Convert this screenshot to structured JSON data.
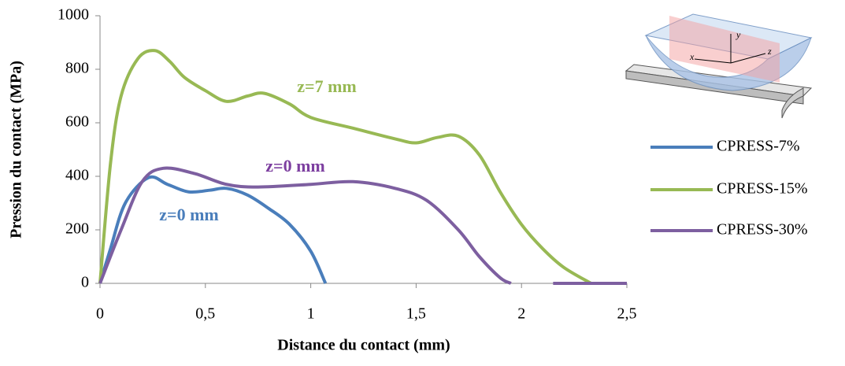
{
  "chart_data": {
    "type": "line",
    "x_label": "Distance du contact (mm)",
    "y_label": "Pression du contact (MPa)",
    "xlim": [
      0,
      2.5
    ],
    "ylim": [
      0,
      1000
    ],
    "xticks": [
      0,
      {
        "value": 0.5,
        "label": "0,5"
      },
      1,
      {
        "value": 1.5,
        "label": "1,5"
      },
      2,
      {
        "value": 2.5,
        "label": "2,5"
      }
    ],
    "yticks": [
      0,
      200,
      400,
      600,
      800,
      1000
    ],
    "grid": false,
    "legend": "right",
    "series": [
      {
        "name": "CPRESS-7%",
        "color": "#4a7ebb",
        "x": [
          0,
          0.05,
          0.12,
          0.23,
          0.32,
          0.42,
          0.52,
          0.6,
          0.7,
          0.8,
          0.9,
          1.0,
          1.07
        ],
        "values": [
          0,
          130,
          300,
          395,
          370,
          342,
          348,
          355,
          330,
          280,
          220,
          120,
          0
        ]
      },
      {
        "name": "CPRESS-15%",
        "color": "#98b954",
        "x": [
          0,
          0.05,
          0.1,
          0.18,
          0.26,
          0.33,
          0.4,
          0.5,
          0.6,
          0.7,
          0.78,
          0.9,
          1.0,
          1.2,
          1.4,
          1.5,
          1.6,
          1.7,
          1.8,
          1.9,
          2.0,
          2.1,
          2.2,
          2.33
        ],
        "values": [
          0,
          450,
          700,
          840,
          870,
          830,
          770,
          720,
          680,
          700,
          710,
          670,
          620,
          580,
          540,
          525,
          545,
          550,
          480,
          340,
          220,
          130,
          60,
          0
        ]
      },
      {
        "name": "CPRESS-30%",
        "color": "#7d5fa0",
        "x": [
          0,
          0.1,
          0.2,
          0.3,
          0.45,
          0.6,
          0.75,
          1.0,
          1.2,
          1.4,
          1.55,
          1.7,
          1.8,
          1.9,
          1.95,
          2.05,
          2.15,
          2.5
        ],
        "values": [
          0,
          200,
          380,
          430,
          410,
          370,
          360,
          370,
          380,
          355,
          310,
          200,
          100,
          20,
          0,
          null,
          0,
          0
        ]
      }
    ],
    "annotations": [
      {
        "text": "z=7 mm",
        "color": "#98b954"
      },
      {
        "text": "z=0 mm",
        "color": "#7d3fa0"
      },
      {
        "text": "z=0 mm",
        "color": "#4a7ebb"
      }
    ],
    "inset": {
      "axis_labels": [
        "y",
        "x",
        "z"
      ]
    }
  }
}
